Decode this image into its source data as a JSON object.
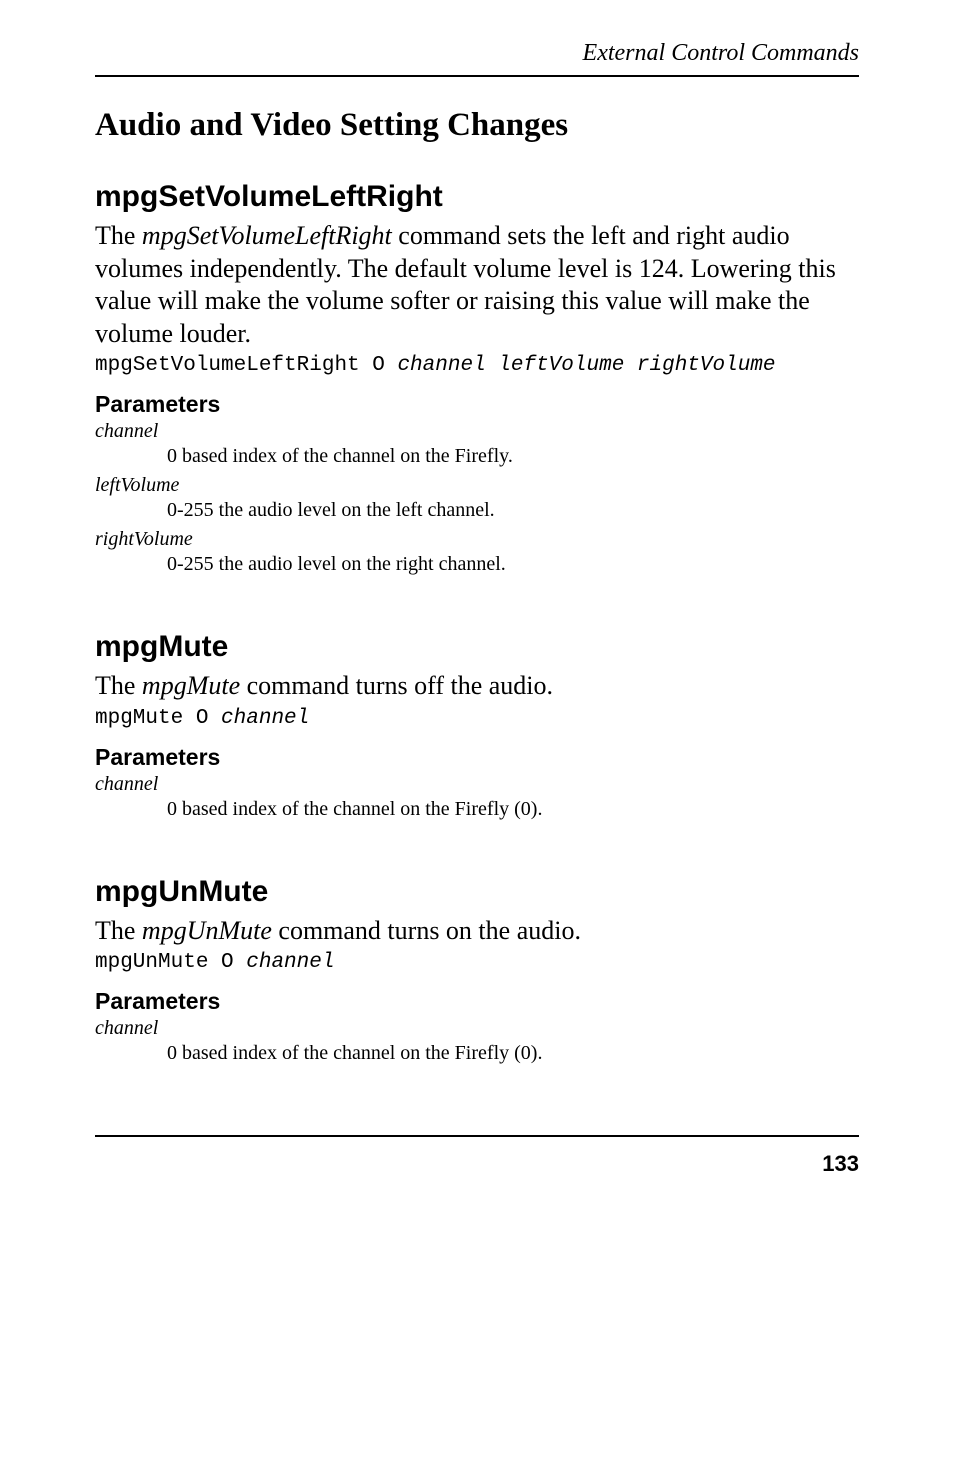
{
  "header": {
    "running_title": "External Control Commands"
  },
  "section": {
    "title": "Audio and Video Setting Changes"
  },
  "commands": [
    {
      "name": "mpgSetVolumeLeftRight",
      "desc_pre": "The ",
      "desc_cmd": "mpgSetVolumeLeftRight",
      "desc_post": " command sets the left and right audio volumes independently. The default volume level is 124. Lowering this value will make the volume softer or raising this value will make the volume louder.",
      "code_plain": "mpgSetVolumeLeftRight O ",
      "code_ital": "channel leftVolume rightVolume",
      "params_title": "Parameters",
      "params": [
        {
          "name": "channel",
          "desc": "0 based index of the channel on the Firefly."
        },
        {
          "name": "leftVolume",
          "desc": "0-255 the audio level on the left channel."
        },
        {
          "name": "rightVolume",
          "desc": "0-255 the audio level on the right channel."
        }
      ]
    },
    {
      "name": "mpgMute",
      "desc_pre": "The ",
      "desc_cmd": "mpgMute",
      "desc_post": " command turns off the audio.",
      "code_plain": "mpgMute O ",
      "code_ital": "channel",
      "params_title": "Parameters",
      "params": [
        {
          "name": "channel",
          "desc": "0 based index of the channel on the Firefly (0)."
        }
      ]
    },
    {
      "name": "mpgUnMute",
      "desc_pre": "The ",
      "desc_cmd": "mpgUnMute",
      "desc_post": " command turns on the audio.",
      "code_plain": "mpgUnMute O ",
      "code_ital": "channel",
      "params_title": "Parameters",
      "params": [
        {
          "name": "channel",
          "desc": "0 based index of the channel on the Firefly (0)."
        }
      ]
    }
  ],
  "footer": {
    "page_number": "133"
  }
}
